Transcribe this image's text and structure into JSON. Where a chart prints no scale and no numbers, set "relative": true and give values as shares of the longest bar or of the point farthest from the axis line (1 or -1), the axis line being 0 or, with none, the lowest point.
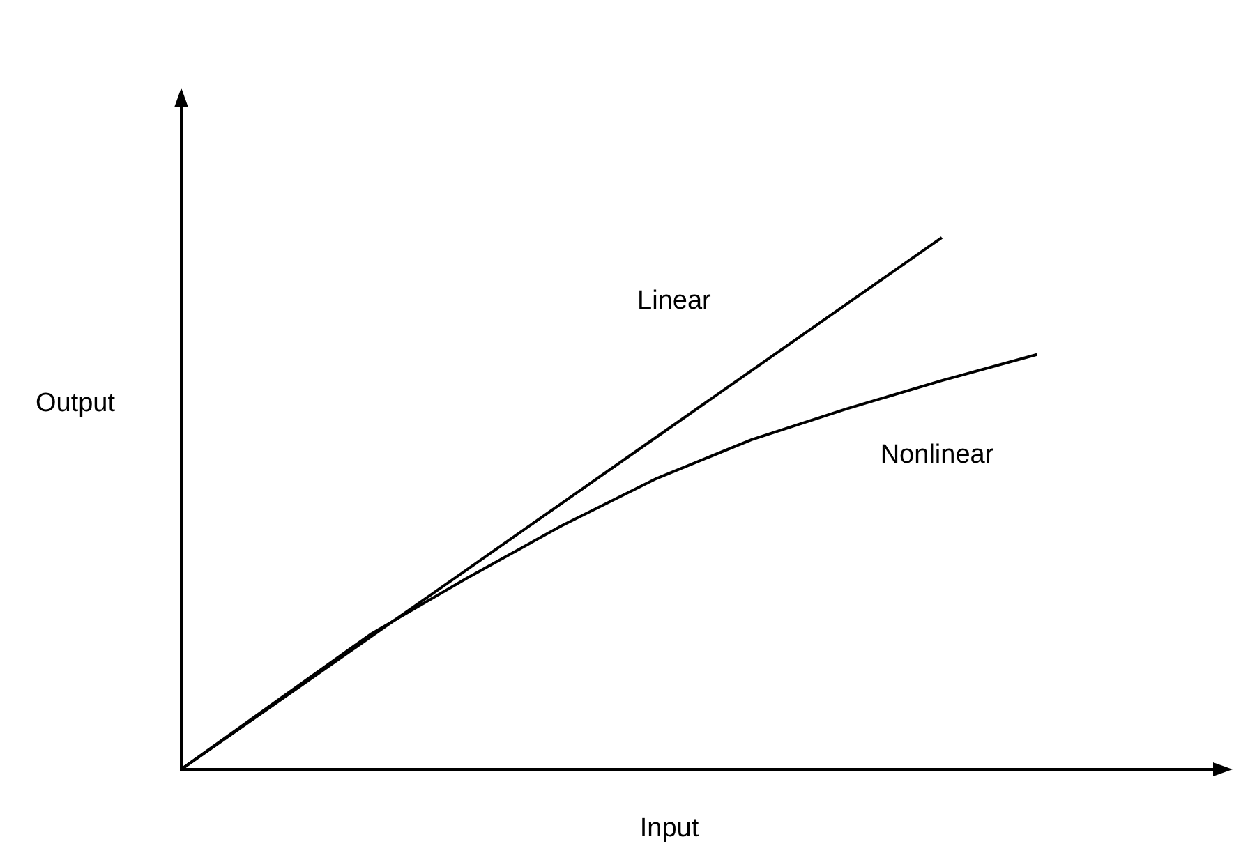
{
  "chart_data": {
    "type": "line",
    "relative": true,
    "xlabel": "Input",
    "ylabel": "Output",
    "grid": false,
    "legend": false,
    "marker": "none",
    "line_style": "solid",
    "categories": [
      null,
      null,
      null,
      null,
      null,
      null,
      null,
      null,
      null,
      null,
      null,
      null
    ],
    "series": [
      {
        "name": "Linear",
        "color": "#000000",
        "values": [
          0,
          0.125,
          0.25,
          0.375,
          0.5,
          0.625,
          0.75,
          0.875,
          1,
          null,
          null,
          null
        ]
      },
      {
        "name": "Nonlinear",
        "color": "#000000",
        "values": [
          0,
          0.128,
          0.255,
          0.359,
          0.458,
          0.547,
          0.62,
          0.678,
          0.731,
          0.78,
          null,
          null
        ]
      }
    ]
  }
}
